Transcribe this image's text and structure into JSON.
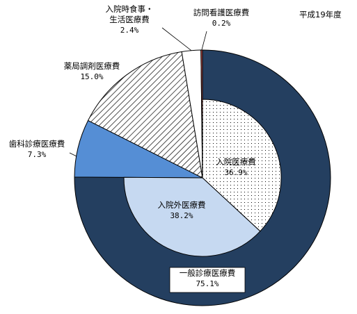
{
  "chart_data": {
    "type": "pie",
    "subtitle": "平成19年度",
    "outer_ring": {
      "slices": [
        {
          "name": "一般診療医療費",
          "value": 75.1,
          "value_label": "75.1%",
          "color": "#243F60",
          "pattern": "solid"
        },
        {
          "name": "歯科診療医療費",
          "value": 7.3,
          "value_label": "7.3%",
          "color": "#558ED5",
          "pattern": "solid"
        },
        {
          "name": "薬局調剤医療費",
          "value": 15.0,
          "value_label": "15.0%",
          "color": "#ffffff",
          "pattern": "diagonal-hatch"
        },
        {
          "name_lines": [
            "入院時食事・",
            "生活医療費"
          ],
          "name": "入院時食事・生活医療費",
          "value": 2.4,
          "value_label": "2.4%",
          "color": "#ffffff",
          "pattern": "solid"
        },
        {
          "name": "訪問看護医療費",
          "value": 0.2,
          "value_label": "0.2%",
          "color": "#C0504D",
          "pattern": "solid"
        }
      ]
    },
    "inner_pie": {
      "slices": [
        {
          "name": "入院医療費",
          "value": 36.9,
          "value_label": "36.9%",
          "color": "#ffffff",
          "pattern": "dotted"
        },
        {
          "name": "入院外医療費",
          "value": 38.2,
          "value_label": "38.2%",
          "color": "#C6D9F1",
          "pattern": "solid"
        }
      ]
    }
  }
}
